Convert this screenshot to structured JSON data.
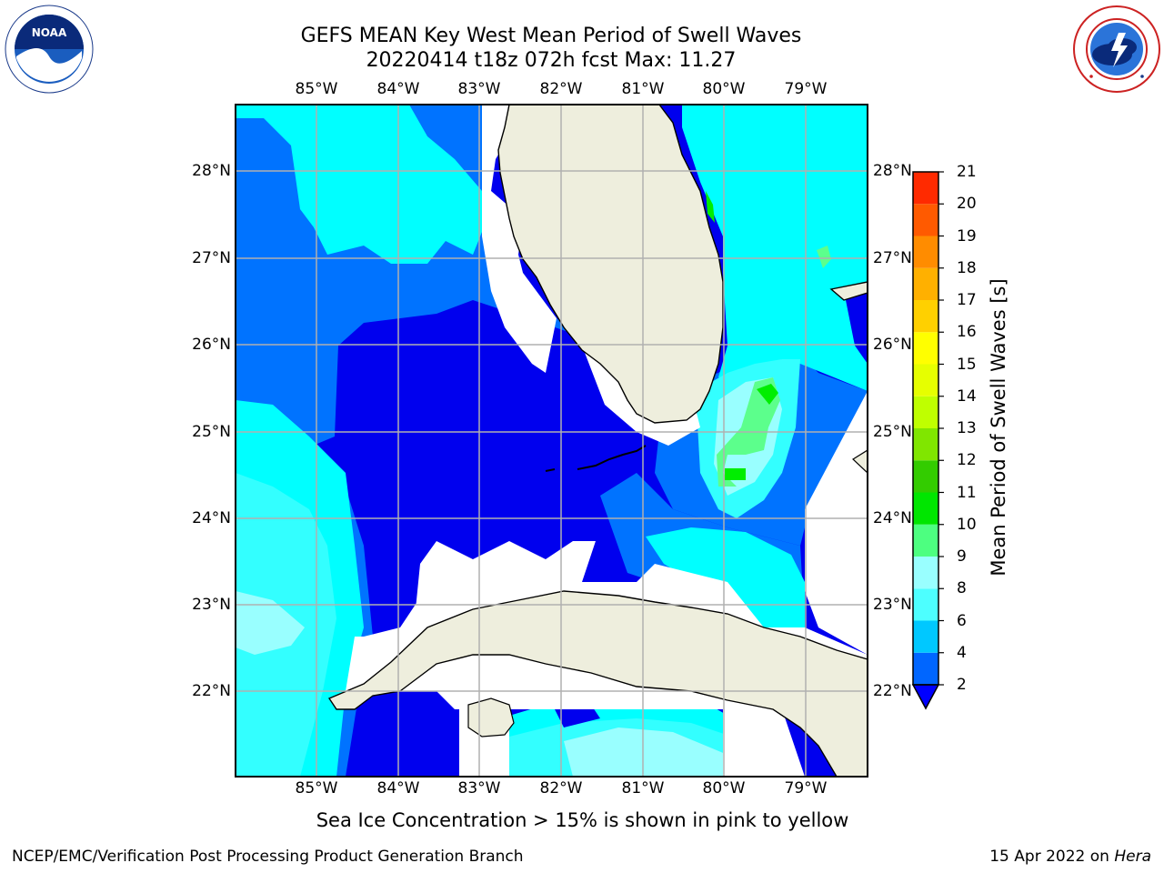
{
  "title": {
    "line1": "GEFS MEAN Key West Mean Period of Swell Waves",
    "line2": "20220414 t18z 072h fcst   Max: 11.27"
  },
  "logos": {
    "left": {
      "icon": "noaa-logo-icon",
      "text": "NOAA",
      "ring_text": "NATIONAL OCEANIC AND ATMOSPHERIC ADMINISTRATION · U.S. DEPARTMENT OF COMMERCE"
    },
    "right": {
      "icon": "nws-logo-icon",
      "ring_text": "NATIONAL WEATHER SERVICE"
    }
  },
  "axes": {
    "longitudes": [
      "85°W",
      "84°W",
      "83°W",
      "82°W",
      "81°W",
      "80°W",
      "79°W"
    ],
    "latitudes": [
      "28°N",
      "27°N",
      "26°N",
      "25°N",
      "24°N",
      "23°N",
      "22°N"
    ]
  },
  "colorbar": {
    "title": "Mean Period of Swell Waves [s]",
    "levels": [
      "2",
      "4",
      "6",
      "8",
      "9",
      "10",
      "11",
      "12",
      "13",
      "14",
      "15",
      "16",
      "17",
      "18",
      "19",
      "20",
      "21"
    ],
    "colors": [
      "#0066ff",
      "#00c8ff",
      "#4dffff",
      "#99ffff",
      "#4dff80",
      "#00e600",
      "#33cc00",
      "#80e600",
      "#bfff00",
      "#e6ff00",
      "#ffff00",
      "#ffd000",
      "#ffb000",
      "#ff8c00",
      "#ff5a00",
      "#ff2a00",
      "#ff0000"
    ],
    "under_color": "#0000ff"
  },
  "field_colors": {
    "deep": "#0000ee",
    "p2": "#0073ff",
    "p4": "#00ffff",
    "p6": "#33ffff",
    "p8": "#99ffff",
    "p9": "#5cff8c",
    "p10": "#00ee00",
    "land": "#eeeedd",
    "grid": "#b0b0b0"
  },
  "note": "Sea Ice Concentration > 15% is shown in pink to yellow",
  "footer": {
    "left": "NCEP/EMC/Verification Post Processing Product Generation Branch",
    "right_prefix": "15 Apr 2022 on ",
    "right_host": "Hera"
  }
}
